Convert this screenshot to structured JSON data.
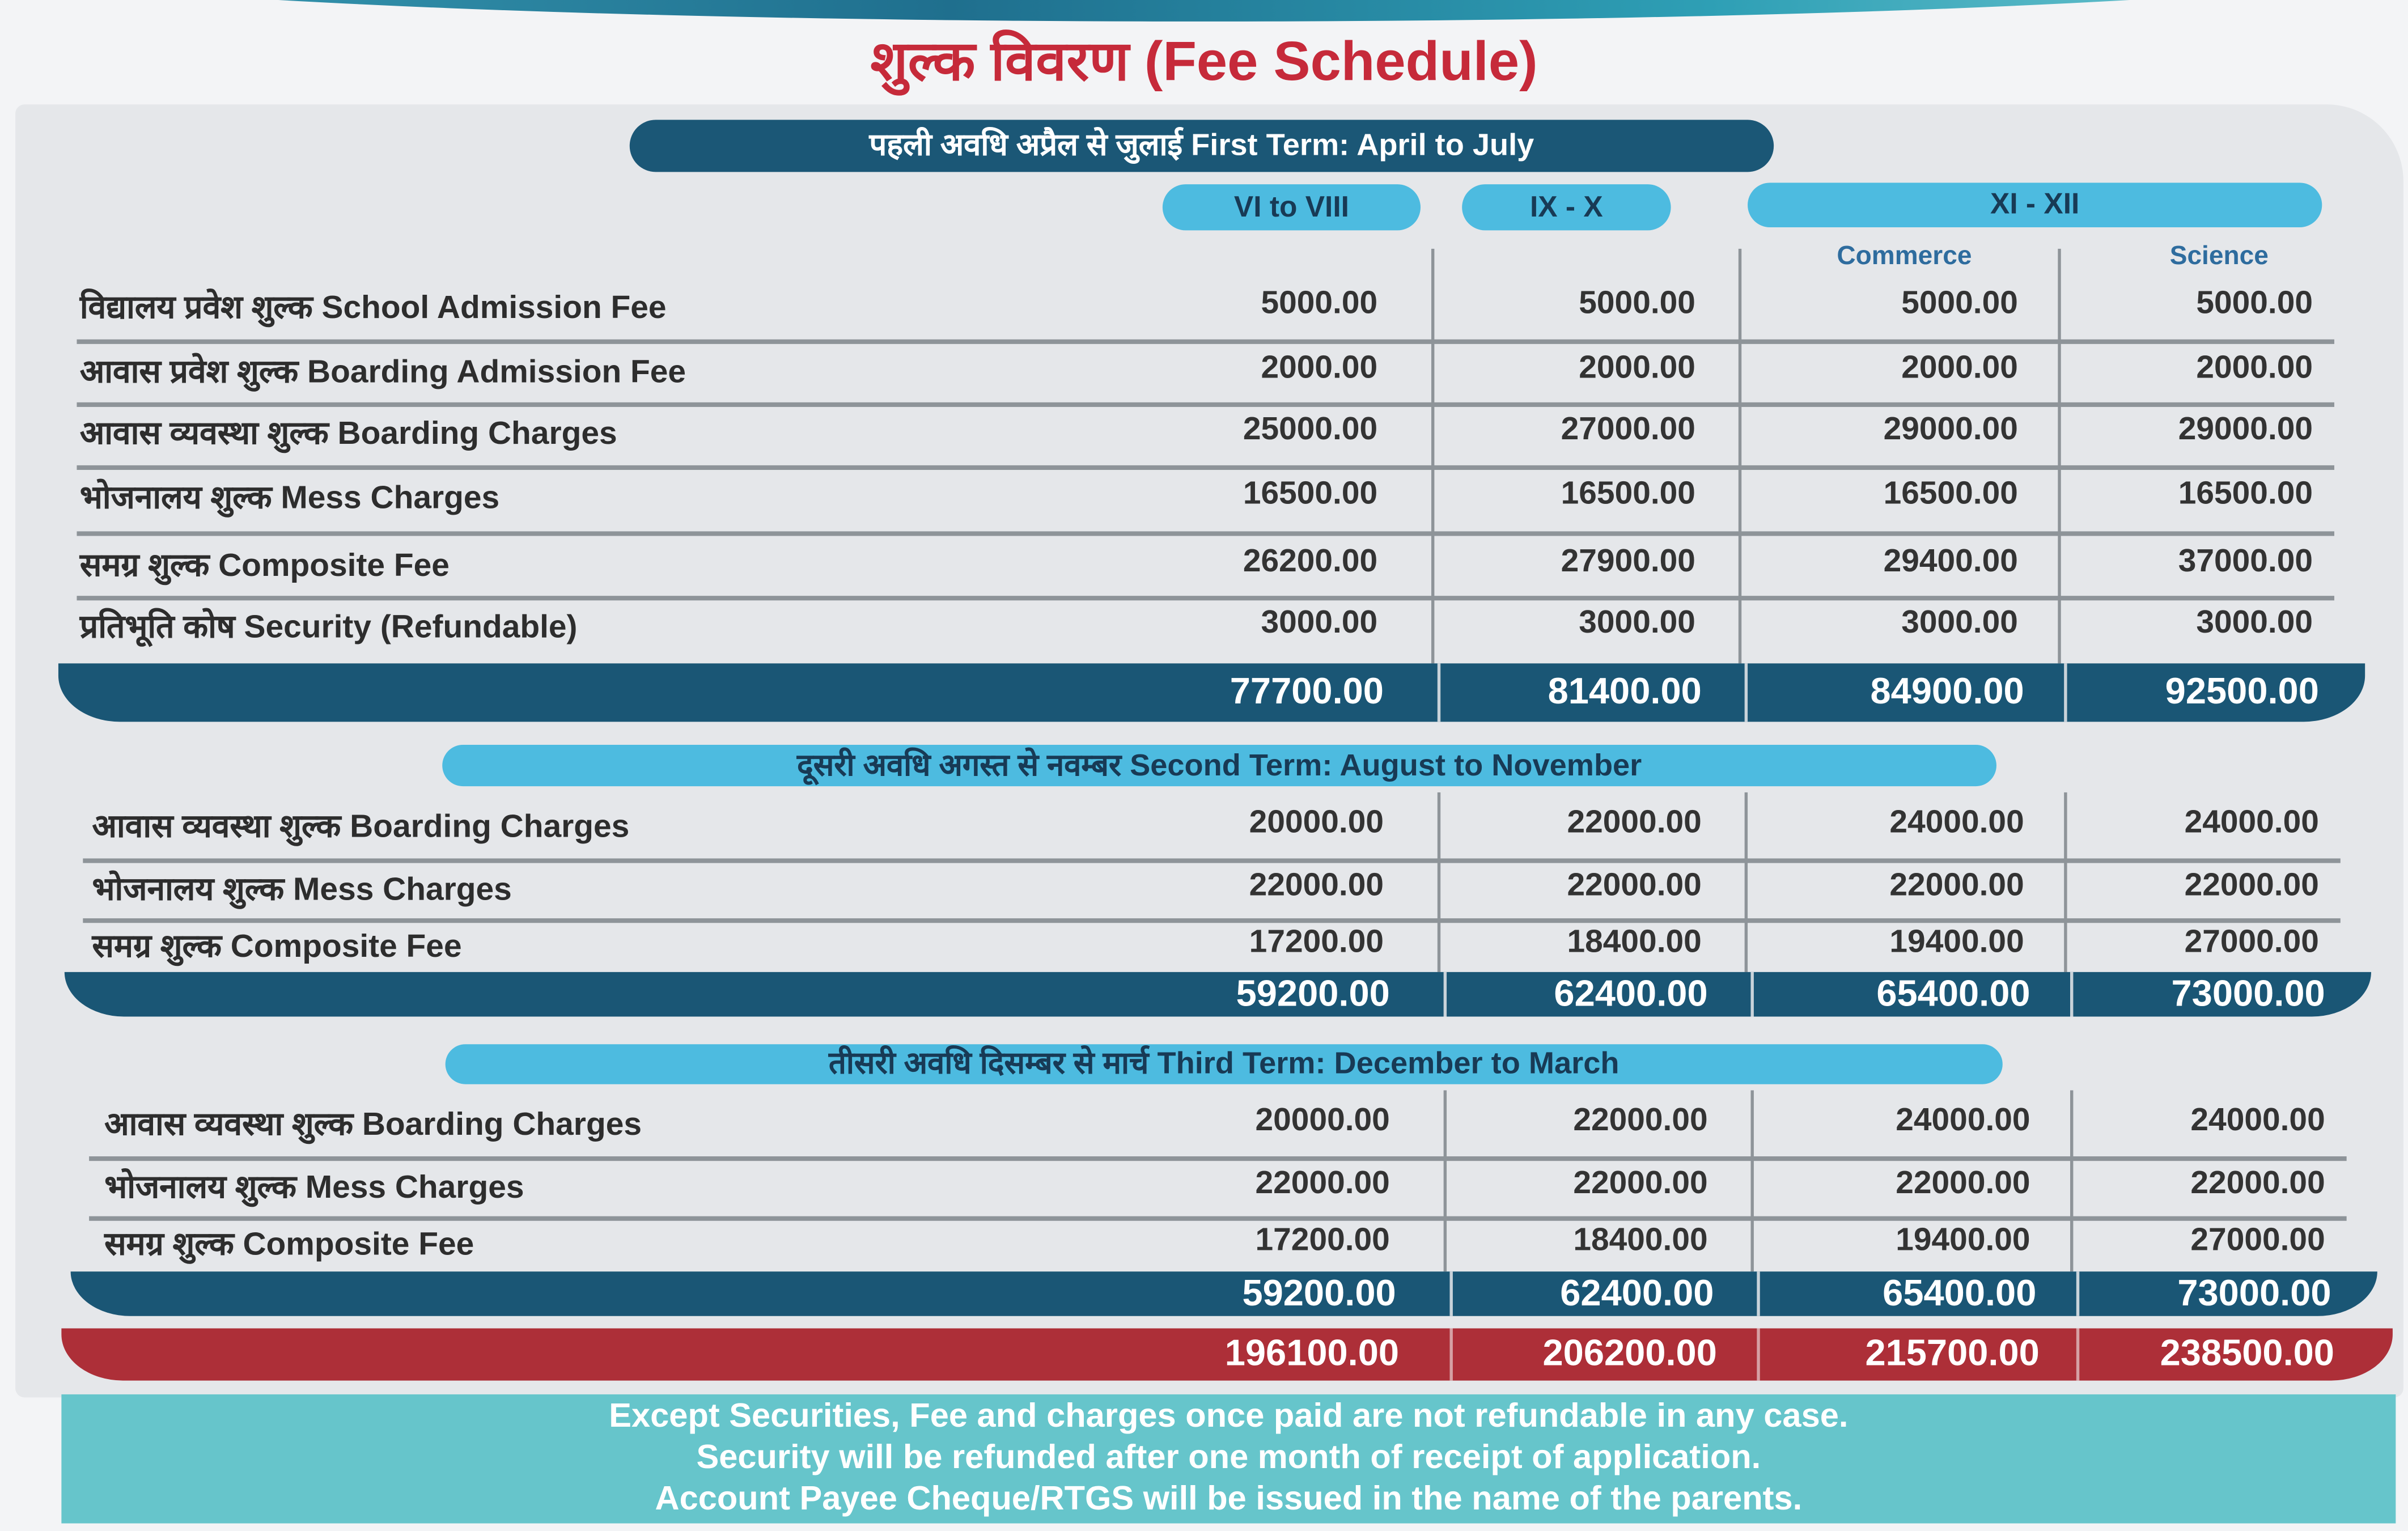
{
  "title": "शुल्क विवरण (Fee Schedule)",
  "colors": {
    "title": "#c62a3a",
    "dark_band": "#1a5675",
    "light_pill": "#4dbbe0",
    "grand_total_band": "#ad2f38",
    "footer": "#66c5cb"
  },
  "columns": {
    "groups": [
      "VI to VIII",
      "IX - X",
      "XI - XII"
    ],
    "subgroups": [
      "Commerce",
      "Science"
    ]
  },
  "terms": [
    {
      "heading": "पहली अवधि अप्रैल से जुलाई First Term: April to July",
      "rows": [
        {
          "label": "विद्यालय प्रवेश शुल्क  School Admission Fee",
          "values": [
            "5000.00",
            "5000.00",
            "5000.00",
            "5000.00"
          ]
        },
        {
          "label": "आवास प्रवेश शुल्क Boarding Admission Fee",
          "values": [
            "2000.00",
            "2000.00",
            "2000.00",
            "2000.00"
          ]
        },
        {
          "label": "आवास व्यवस्था शुल्क  Boarding Charges",
          "values": [
            "25000.00",
            "27000.00",
            "29000.00",
            "29000.00"
          ]
        },
        {
          "label": "भोजनालय शुल्क  Mess Charges",
          "values": [
            "16500.00",
            "16500.00",
            "16500.00",
            "16500.00"
          ]
        },
        {
          "label": "समग्र शुल्क   Composite Fee",
          "values": [
            "26200.00",
            "27900.00",
            "29400.00",
            "37000.00"
          ]
        },
        {
          "label": "प्रतिभूति कोष Security (Refundable)",
          "values": [
            "3000.00",
            "3000.00",
            "3000.00",
            "3000.00"
          ]
        }
      ],
      "totals": [
        "77700.00",
        "81400.00",
        "84900.00",
        "92500.00"
      ]
    },
    {
      "heading": "दूसरी अवधि अगस्त से नवम्बर Second Term: August to November",
      "rows": [
        {
          "label": "आवास व्यवस्था शुल्क   Boarding Charges",
          "values": [
            "20000.00",
            "22000.00",
            "24000.00",
            "24000.00"
          ]
        },
        {
          "label": "भोजनालय शुल्क   Mess Charges",
          "values": [
            "22000.00",
            "22000.00",
            "22000.00",
            "22000.00"
          ]
        },
        {
          "label": "समग्र शुल्क  Composite Fee",
          "values": [
            "17200.00",
            "18400.00",
            "19400.00",
            "27000.00"
          ]
        }
      ],
      "totals": [
        "59200.00",
        "62400.00",
        "65400.00",
        "73000.00"
      ]
    },
    {
      "heading": "तीसरी अवधि दिसम्बर से मार्च Third Term: December to March",
      "rows": [
        {
          "label": "आवास व्यवस्था शुल्क   Boarding Charges",
          "values": [
            "20000.00",
            "22000.00",
            "24000.00",
            "24000.00"
          ]
        },
        {
          "label": "भोजनालय शुल्क   Mess Charges",
          "values": [
            "22000.00",
            "22000.00",
            "22000.00",
            "22000.00"
          ]
        },
        {
          "label": "समग्र शुल्क  Composite Fee",
          "values": [
            "17200.00",
            "18400.00",
            "19400.00",
            "27000.00"
          ]
        }
      ],
      "totals": [
        "59200.00",
        "62400.00",
        "65400.00",
        "73000.00"
      ]
    }
  ],
  "grand_totals": [
    "196100.00",
    "206200.00",
    "215700.00",
    "238500.00"
  ],
  "footer_notes": [
    "Except Securities, Fee and charges once paid are not refundable in any case.",
    "Security will be refunded after one month of receipt of application.",
    "Account Payee Cheque/RTGS will be issued in the name of the parents."
  ]
}
